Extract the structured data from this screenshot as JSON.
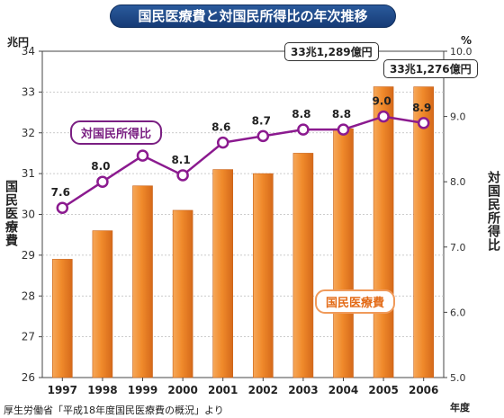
{
  "title": "国民医療費と対国民所得比の年次推移",
  "left_axis": {
    "unit": "兆円",
    "label": "国民医療費"
  },
  "right_axis": {
    "unit": "%",
    "label": "対国民所得比"
  },
  "x_unit": "年度",
  "source": "厚生労働省「平成18年度国民医療費の概況」より",
  "callouts": {
    "c2005": "33兆1,289億円",
    "c2006": "33兆1,276億円"
  },
  "colors": {
    "bar": "#f08a2b",
    "line": "#8b1a8f",
    "title_bg": "#1f4b8c"
  },
  "chart_data": {
    "type": "bar+line",
    "categories": [
      "1997",
      "1998",
      "1999",
      "2000",
      "2001",
      "2002",
      "2003",
      "2004",
      "2005",
      "2006"
    ],
    "series": [
      {
        "name": "国民医療費",
        "type": "bar",
        "axis": "left",
        "values": [
          28.9,
          29.6,
          30.7,
          30.1,
          31.1,
          31.0,
          31.5,
          32.1,
          33.1289,
          33.1276
        ]
      },
      {
        "name": "対国民所得比",
        "type": "line",
        "axis": "right",
        "values": [
          7.6,
          8.0,
          8.4,
          8.1,
          8.6,
          8.7,
          8.8,
          8.8,
          9.0,
          8.9
        ],
        "value_labels": [
          "7.6",
          "8.0",
          "8.4",
          "8.1",
          "8.6",
          "8.7",
          "8.8",
          "8.8",
          "9.0",
          "8.9"
        ]
      }
    ],
    "left_ylim": [
      26,
      34
    ],
    "left_ticks": [
      "26",
      "27",
      "28",
      "29",
      "30",
      "31",
      "32",
      "33",
      "34"
    ],
    "right_ylim": [
      5.0,
      10.0
    ],
    "right_ticks": [
      "5.0",
      "6.0",
      "7.0",
      "8.0",
      "9.0",
      "10.0"
    ],
    "grid": true
  }
}
